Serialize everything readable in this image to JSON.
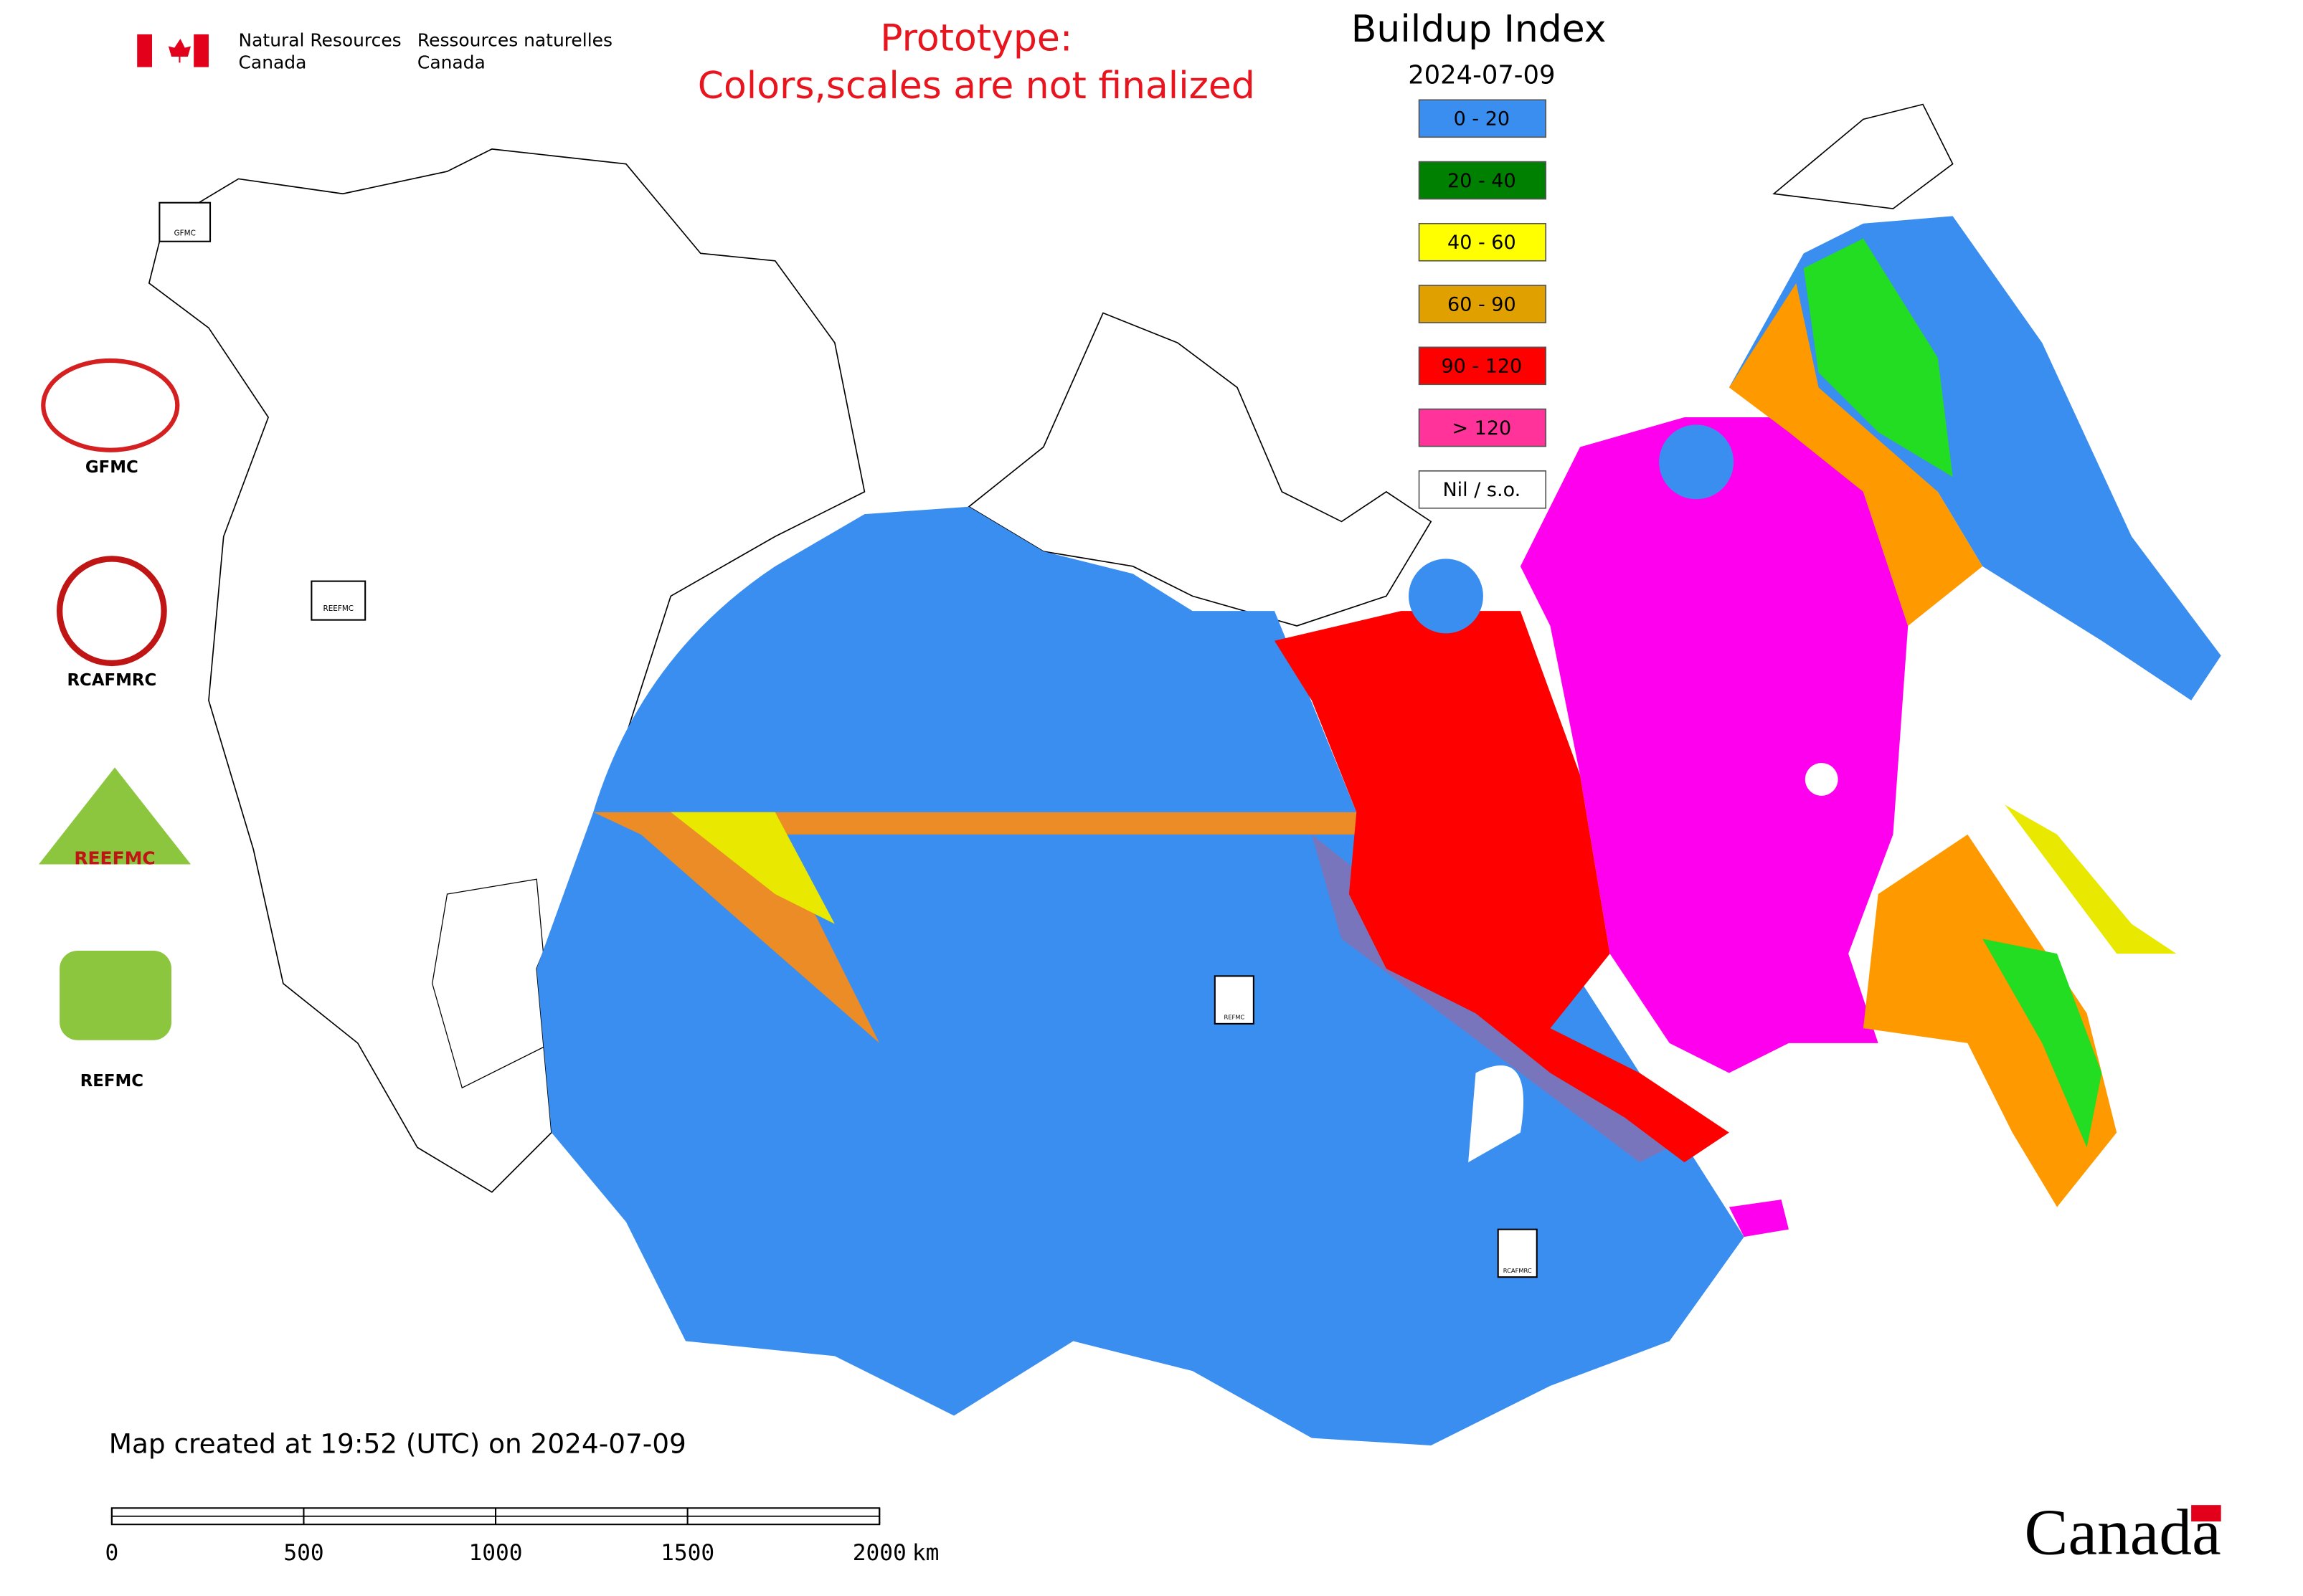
{
  "header": {
    "org_en_1": "Natural Resources",
    "org_en_2": "Canada",
    "org_fr_1": "Ressources naturelles",
    "org_fr_2": "Canada"
  },
  "notice": {
    "line1": "Prototype:",
    "line2": "Colors,scales are not finalized"
  },
  "legend": {
    "title": "Buildup Index",
    "date": "2024-07-09",
    "items": [
      {
        "label": "0 - 20",
        "color": "#3a8ef0"
      },
      {
        "label": "20 - 40",
        "color": "#008000"
      },
      {
        "label": "40 - 60",
        "color": "#ffff00"
      },
      {
        "label": "60 - 90",
        "color": "#e0a000"
      },
      {
        "label": "90 - 120",
        "color": "#ff0000"
      },
      {
        "label": "> 120",
        "color": "#ff3399"
      },
      {
        "label": "Nil / s.o.",
        "color": "#ffffff"
      }
    ]
  },
  "logos": [
    "GFMC",
    "RCAFMRC",
    "REEFMC",
    "REFMC"
  ],
  "map_markers": [
    "GFMC",
    "REEFMC",
    "REFMC",
    "RCAFMRC"
  ],
  "footer": {
    "created": "Map created at 19:52 (UTC) on 2024-07-09",
    "wordmark": "Canada"
  },
  "scale_bar": {
    "ticks": [
      0,
      500,
      1000,
      1500,
      2000
    ],
    "unit": "km"
  }
}
